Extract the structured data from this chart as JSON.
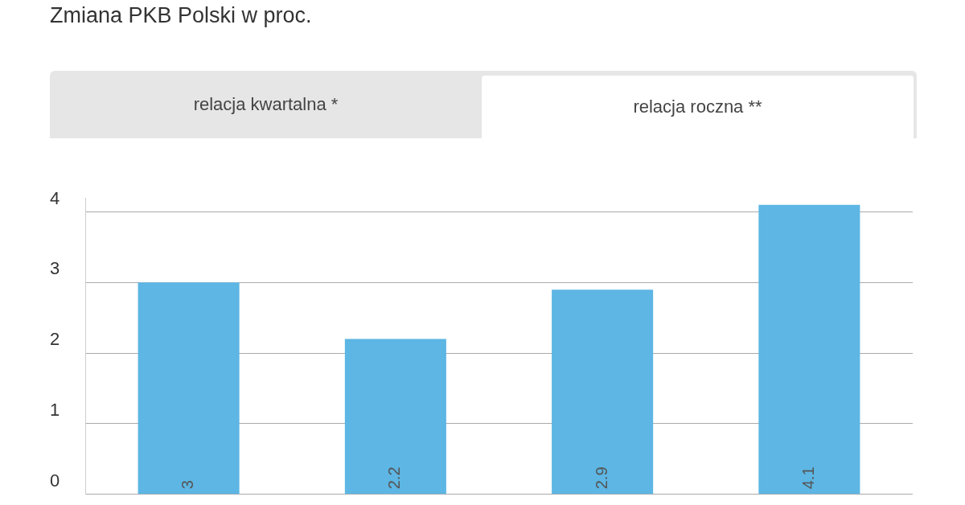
{
  "chart_data": {
    "type": "bar",
    "title": "Zmiana PKB Polski w proc.",
    "annotations": [
      "relacja kwartalna *",
      "relacja roczna **"
    ],
    "categories": [
      null,
      null,
      null,
      null
    ],
    "values": [
      3,
      2.2,
      2.9,
      4.1
    ],
    "color": "#5db6e4",
    "ylim": [
      0,
      4.2
    ],
    "yticks": [
      0,
      1,
      2,
      3,
      4
    ],
    "grid": "y",
    "data_labels": true,
    "tick_labels": "y",
    "legend": false
  }
}
